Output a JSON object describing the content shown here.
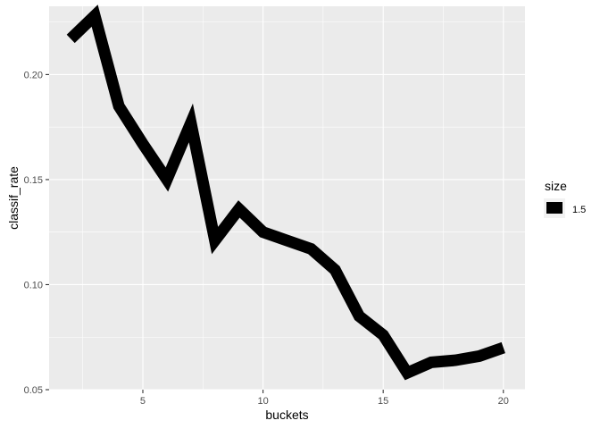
{
  "chart_data": {
    "type": "line",
    "x": [
      2,
      3,
      4,
      5,
      6,
      7,
      8,
      9,
      10,
      11,
      12,
      13,
      14,
      15,
      16,
      17,
      18,
      19,
      20
    ],
    "series": [
      {
        "values": [
          0.217,
          0.228,
          0.185,
          0.167,
          0.15,
          0.177,
          0.121,
          0.136,
          0.125,
          0.121,
          0.117,
          0.107,
          0.085,
          0.076,
          0.058,
          0.063,
          0.064,
          0.066,
          0.07
        ]
      }
    ],
    "xlabel": "buckets",
    "ylabel": "classif_rate",
    "xlim": [
      1.1,
      20.9
    ],
    "ylim": [
      0.05,
      0.2325
    ],
    "x_ticks": [
      5,
      10,
      15,
      20
    ],
    "x_tick_labels": [
      "5",
      "10",
      "15",
      "20"
    ],
    "y_ticks": [
      0.05,
      0.1,
      0.15,
      0.2
    ],
    "y_tick_labels": [
      "0.05",
      "0.10",
      "0.15",
      "0.20"
    ],
    "grid": true,
    "legend": {
      "title": "size",
      "entries": [
        {
          "label": "1.5",
          "color": "#000000"
        }
      ],
      "position": "right"
    },
    "colors": {
      "panel_background": "#ebebeb",
      "grid_major": "#ffffff",
      "line": "#000000"
    }
  }
}
